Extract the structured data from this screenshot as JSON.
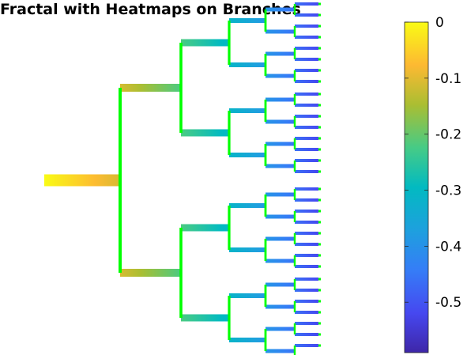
{
  "chart_data": {
    "type": "heatmap",
    "title": "Fractal with Heatmaps on Branches",
    "depth": 6,
    "branch_values": [
      [
        0.0,
        -0.11
      ],
      [
        -0.11,
        -0.22
      ],
      [
        -0.22,
        -0.31
      ],
      [
        -0.31,
        -0.39
      ],
      [
        -0.39,
        -0.46
      ],
      [
        -0.46,
        -0.52
      ]
    ],
    "connector_color": "#00ff00",
    "colorbar": {
      "min": -0.59,
      "max": 0,
      "ticks": [
        0,
        -0.1,
        -0.2,
        -0.3,
        -0.4,
        -0.5
      ],
      "tick_labels": [
        "0",
        "-0.1",
        "-0.2",
        "-0.3",
        "-0.4",
        "-0.5"
      ]
    },
    "colormap": "parula",
    "grid": false,
    "axes_visible": false
  }
}
